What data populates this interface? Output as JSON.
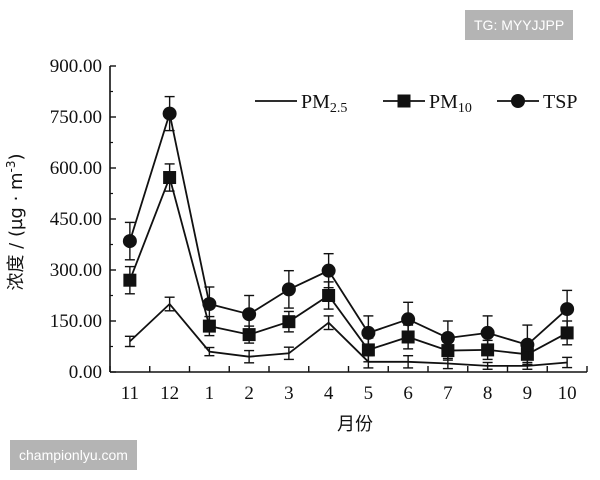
{
  "watermarks": {
    "top_right": "TG: MYYJJPP",
    "bottom_left": "championlyu.com"
  },
  "chart_data": {
    "type": "line",
    "title": "",
    "xlabel": "月份",
    "ylabel": "浓度 / (µg · m⁻³)",
    "ylabel_parts": {
      "main": "浓度 / (µg · m",
      "sup": "-3",
      "tail": ")"
    },
    "categories": [
      "11",
      "12",
      "1",
      "2",
      "3",
      "4",
      "5",
      "6",
      "7",
      "8",
      "9",
      "10"
    ],
    "y_ticks": [
      "0.00",
      "150.00",
      "300.00",
      "450.00",
      "600.00",
      "750.00",
      "900.00"
    ],
    "ylim": [
      0,
      900
    ],
    "grid": false,
    "legend_position": "top-right",
    "series": [
      {
        "name": "PM2.5",
        "name_base": "PM",
        "name_sub": "2.5",
        "marker": "none",
        "color": "#111111",
        "values": [
          90,
          200,
          60,
          45,
          55,
          145,
          30,
          30,
          25,
          18,
          18,
          28
        ],
        "errors": [
          15,
          20,
          12,
          18,
          18,
          20,
          18,
          18,
          15,
          10,
          10,
          15
        ]
      },
      {
        "name": "PM10",
        "name_base": "PM",
        "name_sub": "10",
        "marker": "square",
        "color": "#111111",
        "values": [
          270,
          572,
          135,
          110,
          148,
          225,
          65,
          103,
          63,
          65,
          52,
          115
        ],
        "errors": [
          40,
          40,
          28,
          25,
          30,
          40,
          35,
          35,
          28,
          28,
          30,
          35
        ]
      },
      {
        "name": "TSP",
        "name_base": "TSP",
        "name_sub": "",
        "marker": "circle",
        "color": "#111111",
        "values": [
          385,
          760,
          200,
          170,
          243,
          298,
          115,
          155,
          100,
          115,
          80,
          185
        ],
        "errors": [
          55,
          50,
          50,
          55,
          55,
          50,
          50,
          50,
          50,
          50,
          58,
          55
        ]
      }
    ]
  }
}
